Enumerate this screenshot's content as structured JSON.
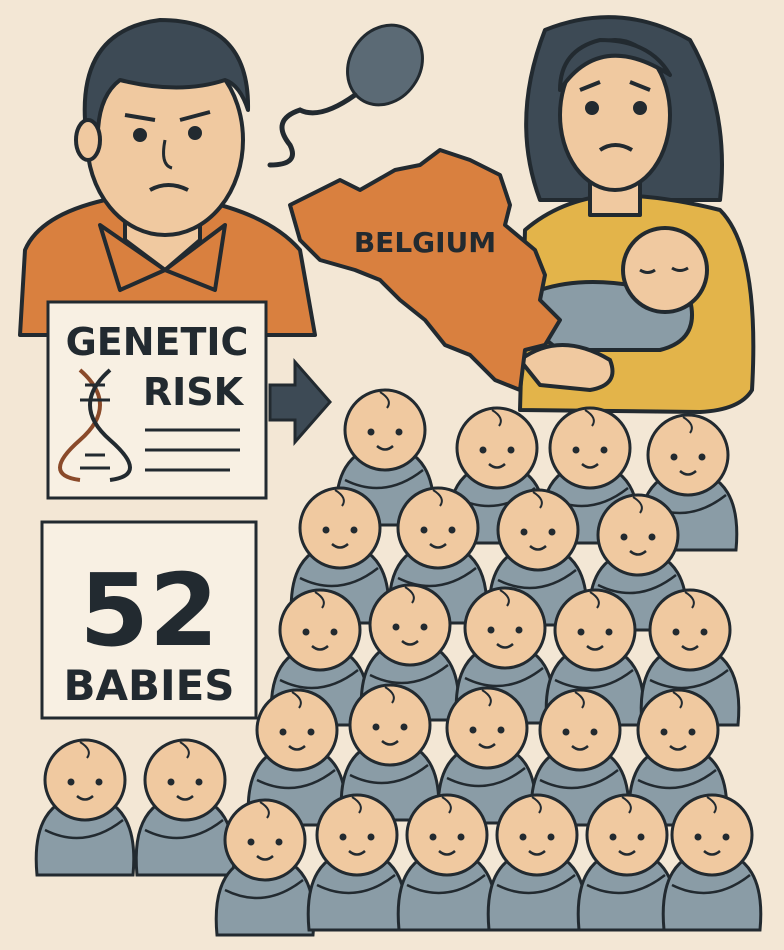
{
  "colors": {
    "background": "#f3e7d5",
    "outline": "#222a30",
    "man_shirt": "#d9803f",
    "map": "#d9803f",
    "woman_sweater": "#e3b44a",
    "hair": "#3d4a55",
    "skin": "#f0c9a0",
    "blanket": "#8a9ca6"
  },
  "map": {
    "label": "BELGIUM"
  },
  "risk_card": {
    "line1": "GENETIC",
    "line2": "RISK",
    "icon": "dna-icon"
  },
  "count_card": {
    "number": "52",
    "label": "BABIES"
  },
  "icons": [
    "sperm-icon",
    "arrow-right-icon",
    "dna-icon"
  ]
}
